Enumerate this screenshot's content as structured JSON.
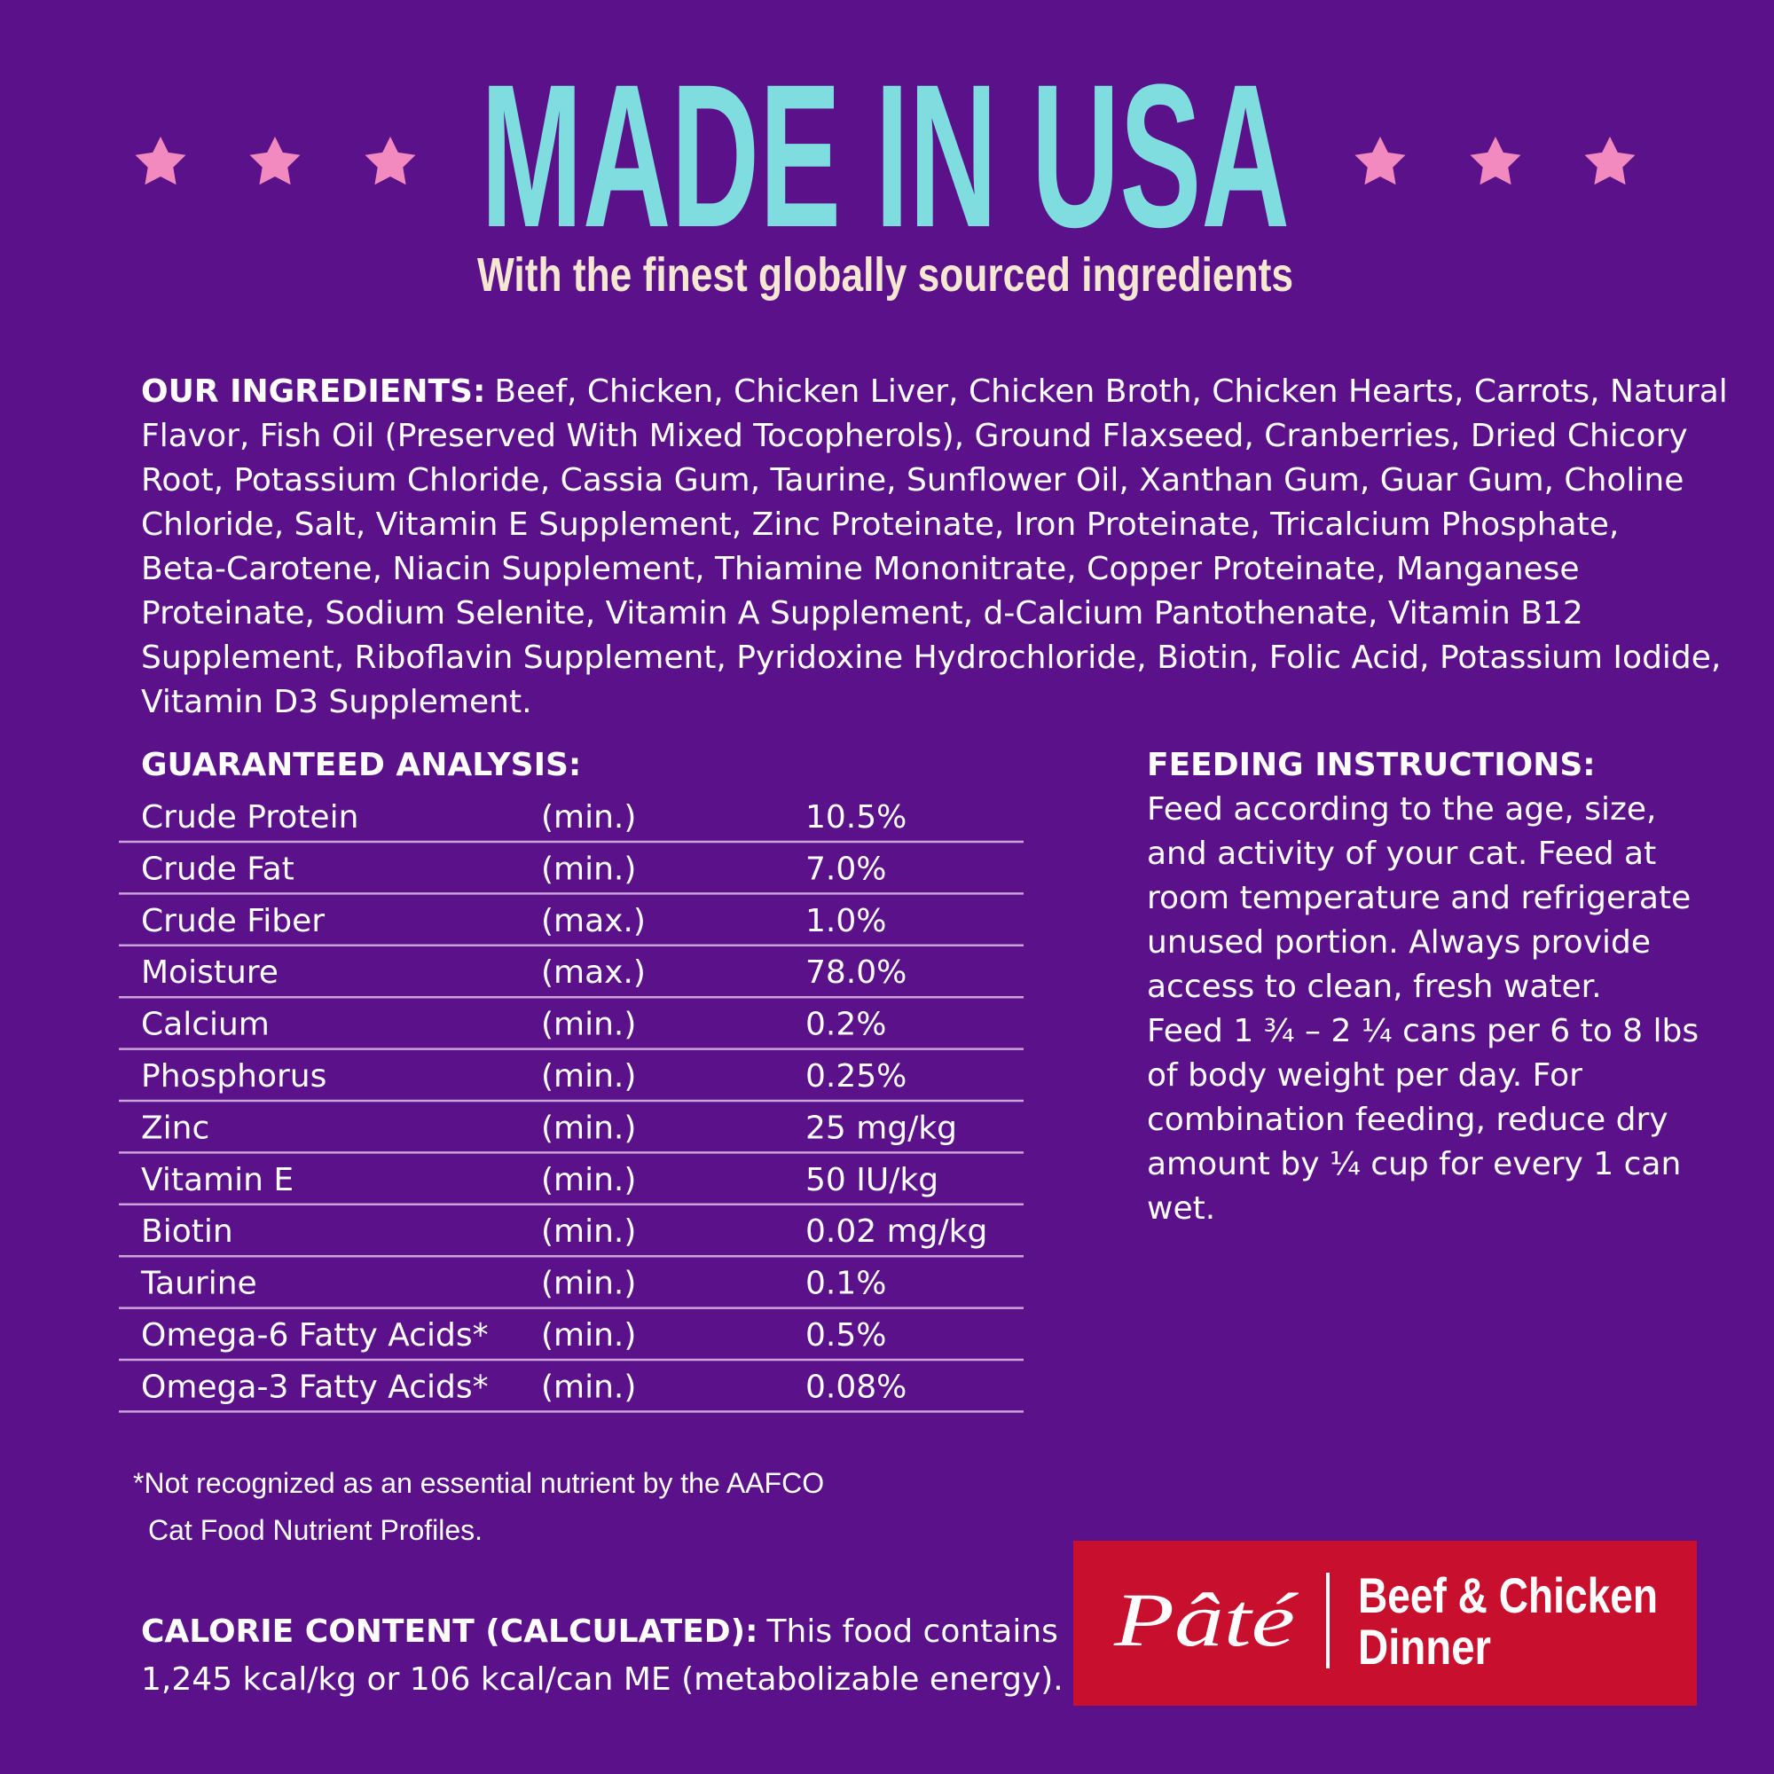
{
  "header": {
    "title": "MADE IN USA",
    "subtitle": "With the finest globally sourced ingredients"
  },
  "ingredients": {
    "label": "OUR INGREDIENTS:",
    "lines": [
      "Beef, Chicken, Chicken Liver, Chicken Broth, Chicken Hearts, Carrots, Natural",
      "Flavor, Fish Oil (Preserved With Mixed Tocopherols), Ground Flaxseed, Cranberries, Dried Chicory",
      "Root, Potassium Chloride, Cassia Gum, Taurine, Sunflower Oil, Xanthan Gum, Guar Gum, Choline",
      "Chloride, Salt, Vitamin E Supplement, Zinc Proteinate, Iron Proteinate, Tricalcium Phosphate,",
      "Beta-Carotene, Niacin Supplement, Thiamine Mononitrate, Copper Proteinate, Manganese",
      "Proteinate, Sodium Selenite, Vitamin A Supplement, d-Calcium Pantothenate, Vitamin B12",
      "Supplement, Riboflavin Supplement, Pyridoxine Hydrochloride, Biotin, Folic Acid, Potassium Iodide,",
      "Vitamin D3 Supplement."
    ]
  },
  "analysis": {
    "title": "GUARANTEED ANALYSIS:",
    "rows": [
      [
        "Crude Protein",
        "(min.)",
        "10.5%"
      ],
      [
        "Crude Fat",
        "(min.)",
        "7.0%"
      ],
      [
        "Crude Fiber",
        "(max.)",
        "1.0%"
      ],
      [
        "Moisture",
        "(max.)",
        "78.0%"
      ],
      [
        "Calcium",
        "(min.)",
        "0.2%"
      ],
      [
        "Phosphorus",
        "(min.)",
        "0.25%"
      ],
      [
        "Zinc",
        "(min.)",
        "25 mg/kg"
      ],
      [
        "Vitamin E",
        "(min.)",
        "50 IU/kg"
      ],
      [
        "Biotin",
        "(min.)",
        "0.02 mg/kg"
      ],
      [
        "Taurine",
        "(min.)",
        "0.1%"
      ],
      [
        "Omega-6 Fatty Acids*",
        "(min.)",
        "0.5%"
      ],
      [
        "Omega-3 Fatty Acids*",
        "(min.)",
        "0.08%"
      ]
    ]
  },
  "feeding": {
    "title": "FEEDING INSTRUCTIONS:",
    "lines": [
      "Feed according to the age, size,",
      "and activity of your cat. Feed at",
      "room temperature and refrigerate",
      "unused portion. Always provide",
      "access to clean, fresh water.",
      "Feed 1 ¾ – 2 ¼ cans per 6 to 8 lbs",
      "of body weight per day. For",
      "combination feeding, reduce dry",
      "amount by ¼ cup for every 1 can",
      "wet."
    ]
  },
  "footnote": {
    "lines": [
      "*Not recognized as an essential nutrient by the AAFCO",
      "Cat Food Nutrient Profiles."
    ]
  },
  "calorie": {
    "label": "CALORIE CONTENT (CALCULATED):",
    "lines": [
      "This food contains",
      "1,245 kcal/kg or 106 kcal/can ME (metabolizable energy)."
    ]
  },
  "badge": {
    "style": "Pâté",
    "name": [
      "Beef & Chicken",
      "Dinner"
    ]
  }
}
